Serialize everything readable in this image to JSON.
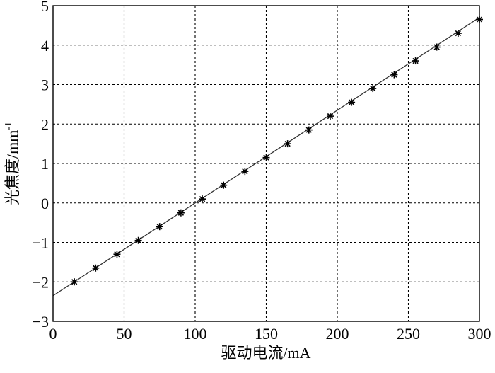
{
  "chart_data": {
    "type": "scatter",
    "title": "",
    "xlabel": "驱动电流/mA",
    "ylabel_main": "光焦度/mm",
    "ylabel_sup": "-1",
    "xlim": [
      0,
      300
    ],
    "ylim": [
      -3,
      5
    ],
    "xticks": [
      0,
      50,
      100,
      150,
      200,
      250,
      300
    ],
    "yticks": [
      -3,
      -2,
      -1,
      0,
      1,
      2,
      3,
      4,
      5
    ],
    "xtick_labels": [
      "0",
      "50",
      "100",
      "150",
      "200",
      "250",
      "300"
    ],
    "ytick_labels": [
      "−3",
      "−2",
      "−1",
      "0",
      "1",
      "2",
      "3",
      "4",
      "5"
    ],
    "grid": true,
    "series": [
      {
        "style": "asterisk-markers",
        "x": [
          15,
          30,
          45,
          60,
          75,
          90,
          105,
          120,
          135,
          150,
          165,
          180,
          195,
          210,
          225,
          240,
          255,
          270,
          285,
          300
        ],
        "y": [
          -2.0,
          -1.65,
          -1.3,
          -0.95,
          -0.6,
          -0.25,
          0.1,
          0.45,
          0.8,
          1.15,
          1.5,
          1.85,
          2.2,
          2.55,
          2.9,
          3.25,
          3.6,
          3.95,
          4.3,
          4.65
        ]
      }
    ],
    "fit_line": {
      "x": [
        0,
        300
      ],
      "y": [
        -2.35,
        4.7
      ]
    }
  }
}
